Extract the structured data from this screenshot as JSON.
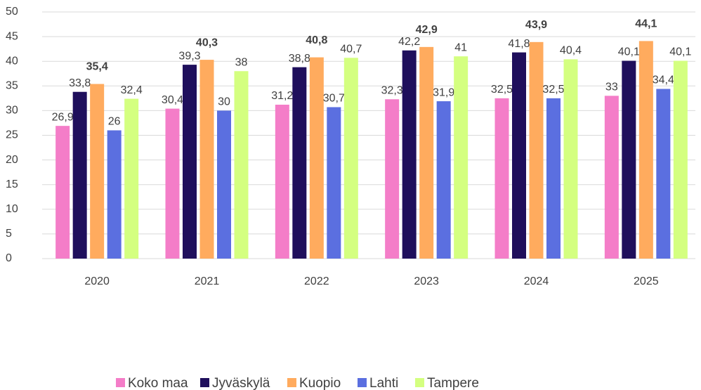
{
  "chart_data": {
    "type": "bar",
    "categories": [
      "2020",
      "2021",
      "2022",
      "2023",
      "2024",
      "2025"
    ],
    "series": [
      {
        "name": "Koko maa",
        "color": "#f47dc8",
        "values": [
          26.9,
          30.4,
          31.2,
          32.3,
          32.5,
          33
        ],
        "value_labels": [
          "26,9",
          "30,4",
          "31,2",
          "32,3",
          "32,5",
          "33"
        ]
      },
      {
        "name": "Jyväskylä",
        "color": "#1f0f5c",
        "values": [
          33.8,
          39.3,
          38.8,
          42.2,
          41.8,
          40.1
        ],
        "value_labels": [
          "33,8",
          "39,3",
          "38,8",
          "42,2",
          "41,8",
          "40,1"
        ]
      },
      {
        "name": "Kuopio",
        "color": "#ffab5e",
        "values": [
          35.4,
          40.3,
          40.8,
          42.9,
          43.9,
          44.1
        ],
        "value_labels": [
          "35,4",
          "40,3",
          "40,8",
          "42,9",
          "43,9",
          "44,1"
        ],
        "bold_labels": true
      },
      {
        "name": "Lahti",
        "color": "#5b6fe0",
        "values": [
          26,
          30,
          30.7,
          31.9,
          32.5,
          34.4
        ],
        "value_labels": [
          "26",
          "30",
          "30,7",
          "31,9",
          "32,5",
          "34,4"
        ]
      },
      {
        "name": "Tampere",
        "color": "#d4ff80",
        "values": [
          32.4,
          38,
          40.7,
          41,
          40.4,
          40.1
        ],
        "value_labels": [
          "32,4",
          "38",
          "40,7",
          "41",
          "40,4",
          "40,1"
        ]
      }
    ],
    "ylim": [
      0,
      50
    ],
    "yticks": [
      0,
      5,
      10,
      15,
      20,
      25,
      30,
      35,
      40,
      45,
      50
    ],
    "grid": true,
    "legend": "bottom"
  }
}
